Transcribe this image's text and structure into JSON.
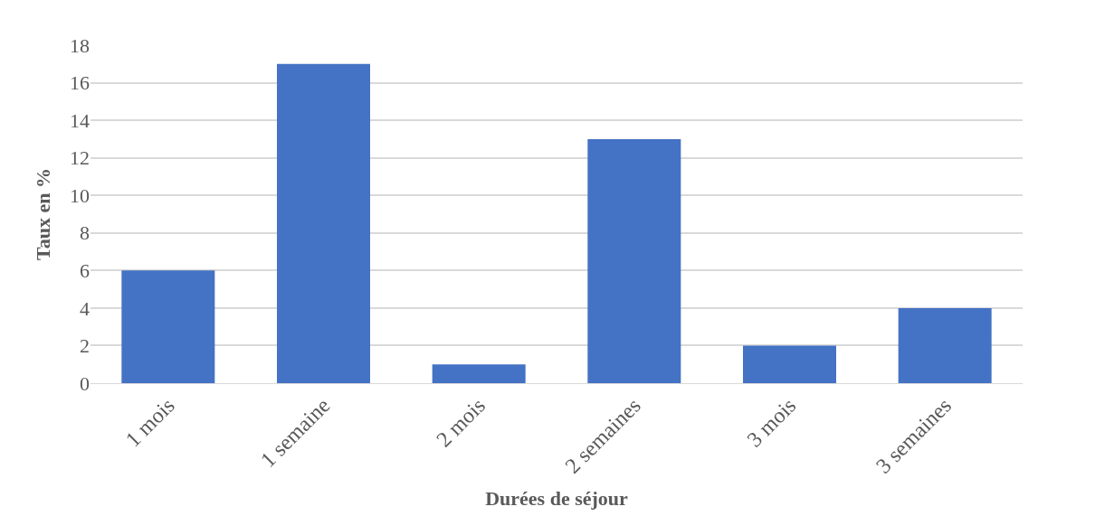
{
  "chart_data": {
    "type": "bar",
    "xlabel": "Durées de séjour",
    "ylabel": "Taux en %",
    "categories": [
      "1 mois",
      "1 semaine",
      "2 mois",
      "2 semaines",
      "3 mois",
      "3 semaines"
    ],
    "values": [
      6,
      17,
      1,
      13,
      2,
      4
    ],
    "color": "#4472c4",
    "ylim": [
      0,
      18
    ],
    "yticks": [
      0,
      2,
      4,
      6,
      8,
      10,
      12,
      14,
      16,
      18
    ],
    "grid": "y"
  }
}
